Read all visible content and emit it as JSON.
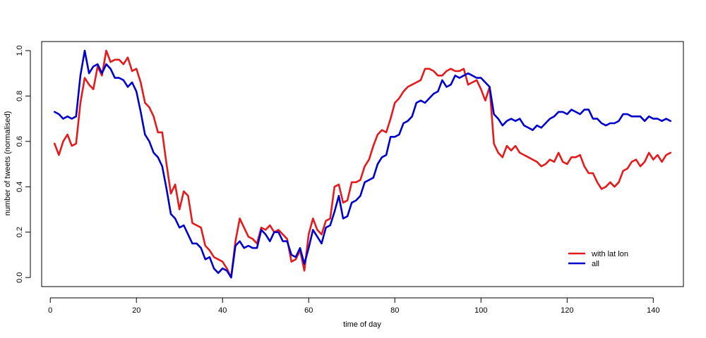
{
  "chart_data": {
    "type": "line",
    "title": "",
    "xlabel": "time of day",
    "ylabel": "number of tweets (normalised)",
    "xlim": [
      -2,
      147
    ],
    "ylim": [
      -0.04,
      1.04
    ],
    "xticks": [
      0,
      20,
      40,
      60,
      80,
      100,
      120,
      140
    ],
    "yticks": [
      0.0,
      0.2,
      0.4,
      0.6,
      0.8,
      1.0
    ],
    "ytick_labels": [
      "0.0",
      "0.2",
      "0.4",
      "0.6",
      "0.8",
      "1.0"
    ],
    "grid": false,
    "legend_position": "bottom-right",
    "series": [
      {
        "name": "with lat lon",
        "color": "#e41a1c",
        "x": [
          1,
          2,
          3,
          4,
          5,
          6,
          7,
          8,
          9,
          10,
          11,
          12,
          13,
          14,
          15,
          16,
          17,
          18,
          19,
          20,
          21,
          22,
          23,
          24,
          25,
          26,
          27,
          28,
          29,
          30,
          31,
          32,
          33,
          34,
          35,
          36,
          37,
          38,
          39,
          40,
          41,
          42,
          43,
          44,
          45,
          46,
          47,
          48,
          49,
          50,
          51,
          52,
          53,
          54,
          55,
          56,
          57,
          58,
          59,
          60,
          61,
          62,
          63,
          64,
          65,
          66,
          67,
          68,
          69,
          70,
          71,
          72,
          73,
          74,
          75,
          76,
          77,
          78,
          79,
          80,
          81,
          82,
          83,
          84,
          85,
          86,
          87,
          88,
          89,
          90,
          91,
          92,
          93,
          94,
          95,
          96,
          97,
          98,
          99,
          100,
          101,
          102,
          103,
          104,
          105,
          106,
          107,
          108,
          109,
          110,
          111,
          112,
          113,
          114,
          115,
          116,
          117,
          118,
          119,
          120,
          121,
          122,
          123,
          124,
          125,
          126,
          127,
          128,
          129,
          130,
          131,
          132,
          133,
          134,
          135,
          136,
          137,
          138,
          139,
          140,
          141,
          142,
          143,
          144
        ],
        "y": [
          0.59,
          0.54,
          0.6,
          0.63,
          0.58,
          0.59,
          0.77,
          0.88,
          0.85,
          0.83,
          0.93,
          0.89,
          1.0,
          0.95,
          0.96,
          0.96,
          0.94,
          0.97,
          0.91,
          0.92,
          0.86,
          0.77,
          0.75,
          0.71,
          0.64,
          0.64,
          0.5,
          0.37,
          0.41,
          0.3,
          0.38,
          0.36,
          0.24,
          0.23,
          0.22,
          0.14,
          0.12,
          0.09,
          0.08,
          0.07,
          0.04,
          0.0,
          0.16,
          0.26,
          0.22,
          0.18,
          0.17,
          0.15,
          0.22,
          0.21,
          0.23,
          0.2,
          0.21,
          0.19,
          0.17,
          0.07,
          0.08,
          0.12,
          0.03,
          0.19,
          0.26,
          0.21,
          0.19,
          0.25,
          0.26,
          0.4,
          0.41,
          0.33,
          0.34,
          0.42,
          0.42,
          0.43,
          0.49,
          0.52,
          0.58,
          0.63,
          0.65,
          0.64,
          0.7,
          0.77,
          0.79,
          0.82,
          0.84,
          0.85,
          0.86,
          0.87,
          0.92,
          0.92,
          0.91,
          0.89,
          0.89,
          0.91,
          0.92,
          0.91,
          0.91,
          0.92,
          0.85,
          0.86,
          0.87,
          0.83,
          0.78,
          0.84,
          0.59,
          0.55,
          0.53,
          0.58,
          0.56,
          0.58,
          0.55,
          0.54,
          0.53,
          0.52,
          0.51,
          0.49,
          0.5,
          0.52,
          0.51,
          0.55,
          0.51,
          0.5,
          0.53,
          0.53,
          0.54,
          0.49,
          0.46,
          0.46,
          0.42,
          0.39,
          0.4,
          0.42,
          0.4,
          0.42,
          0.47,
          0.48,
          0.51,
          0.52,
          0.49,
          0.51,
          0.55,
          0.52,
          0.54,
          0.51,
          0.54,
          0.55
        ]
      },
      {
        "name": "all",
        "color": "#0000cd",
        "x": [
          1,
          2,
          3,
          4,
          5,
          6,
          7,
          8,
          9,
          10,
          11,
          12,
          13,
          14,
          15,
          16,
          17,
          18,
          19,
          20,
          21,
          22,
          23,
          24,
          25,
          26,
          27,
          28,
          29,
          30,
          31,
          32,
          33,
          34,
          35,
          36,
          37,
          38,
          39,
          40,
          41,
          42,
          43,
          44,
          45,
          46,
          47,
          48,
          49,
          50,
          51,
          52,
          53,
          54,
          55,
          56,
          57,
          58,
          59,
          60,
          61,
          62,
          63,
          64,
          65,
          66,
          67,
          68,
          69,
          70,
          71,
          72,
          73,
          74,
          75,
          76,
          77,
          78,
          79,
          80,
          81,
          82,
          83,
          84,
          85,
          86,
          87,
          88,
          89,
          90,
          91,
          92,
          93,
          94,
          95,
          96,
          97,
          98,
          99,
          100,
          101,
          102,
          103,
          104,
          105,
          106,
          107,
          108,
          109,
          110,
          111,
          112,
          113,
          114,
          115,
          116,
          117,
          118,
          119,
          120,
          121,
          122,
          123,
          124,
          125,
          126,
          127,
          128,
          129,
          130,
          131,
          132,
          133,
          134,
          135,
          136,
          137,
          138,
          139,
          140,
          141,
          142,
          143,
          144
        ],
        "y": [
          0.73,
          0.72,
          0.7,
          0.71,
          0.7,
          0.71,
          0.89,
          1.0,
          0.9,
          0.93,
          0.94,
          0.9,
          0.94,
          0.92,
          0.88,
          0.88,
          0.87,
          0.84,
          0.86,
          0.82,
          0.73,
          0.63,
          0.6,
          0.55,
          0.53,
          0.49,
          0.39,
          0.28,
          0.26,
          0.22,
          0.23,
          0.19,
          0.15,
          0.15,
          0.13,
          0.08,
          0.09,
          0.04,
          0.02,
          0.04,
          0.03,
          0.0,
          0.14,
          0.16,
          0.13,
          0.14,
          0.13,
          0.13,
          0.21,
          0.19,
          0.16,
          0.2,
          0.2,
          0.16,
          0.16,
          0.1,
          0.09,
          0.13,
          0.06,
          0.13,
          0.21,
          0.18,
          0.15,
          0.22,
          0.23,
          0.29,
          0.36,
          0.26,
          0.27,
          0.33,
          0.34,
          0.36,
          0.42,
          0.43,
          0.44,
          0.5,
          0.53,
          0.54,
          0.62,
          0.62,
          0.63,
          0.68,
          0.69,
          0.71,
          0.77,
          0.78,
          0.77,
          0.79,
          0.81,
          0.82,
          0.87,
          0.84,
          0.85,
          0.89,
          0.88,
          0.89,
          0.9,
          0.89,
          0.88,
          0.88,
          0.86,
          0.84,
          0.72,
          0.7,
          0.67,
          0.69,
          0.7,
          0.69,
          0.7,
          0.67,
          0.66,
          0.65,
          0.67,
          0.66,
          0.68,
          0.7,
          0.71,
          0.73,
          0.73,
          0.72,
          0.74,
          0.73,
          0.72,
          0.74,
          0.74,
          0.7,
          0.7,
          0.68,
          0.67,
          0.68,
          0.68,
          0.69,
          0.72,
          0.72,
          0.71,
          0.71,
          0.71,
          0.69,
          0.71,
          0.7,
          0.7,
          0.69,
          0.7,
          0.69
        ]
      }
    ]
  }
}
